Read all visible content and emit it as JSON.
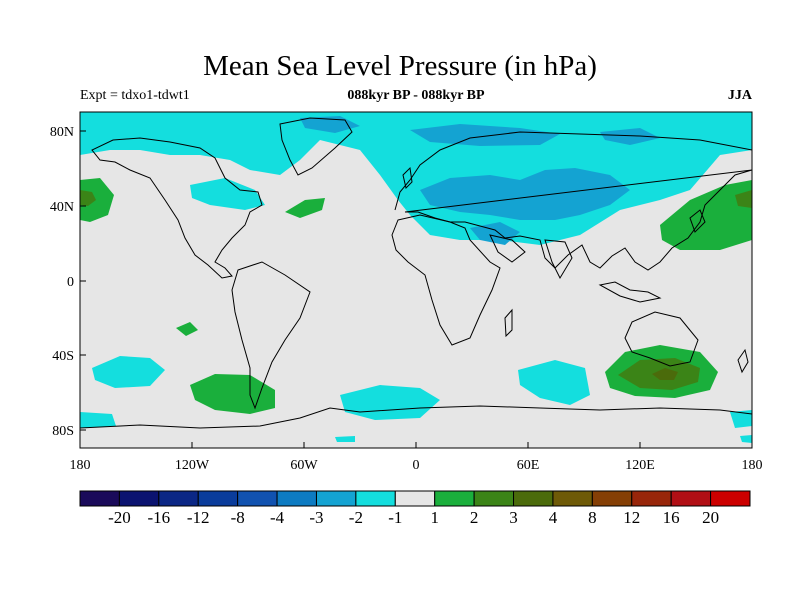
{
  "title": "Mean Sea Level Pressure (in hPa)",
  "experiment_label": "Expt = tdxo1-tdwt1",
  "period_label": "088kyr BP - 088kyr BP",
  "season_label": "JJA",
  "lon_ticks": [
    "180",
    "120W",
    "60W",
    "0",
    "60E",
    "120E",
    "180"
  ],
  "lat_ticks": [
    "80N",
    "40N",
    "0",
    "40S",
    "80S"
  ],
  "colorbar": {
    "colors": [
      "#1a0a5a",
      "#0b1370",
      "#0b2785",
      "#0a3c9b",
      "#1152b0",
      "#0d7bc2",
      "#14a3d2",
      "#14dede",
      "#e6e6e6",
      "#1aaf3c",
      "#3b8417",
      "#4b6b0b",
      "#6e5a07",
      "#853f05",
      "#98260a",
      "#b10f15",
      "#cc0000"
    ],
    "labels": [
      "-20",
      "-16",
      "-12",
      "-8",
      "-4",
      "-3",
      "-2",
      "-1",
      "1",
      "2",
      "3",
      "4",
      "8",
      "12",
      "16",
      "20"
    ]
  },
  "colors": {
    "ocean_background": "#e6e6e6",
    "neg_1": "#14dede",
    "neg_2": "#14a3d2",
    "pos_2": "#1aaf3c",
    "pos_3": "#3b8417",
    "pos_4": "#4b6b0b"
  }
}
